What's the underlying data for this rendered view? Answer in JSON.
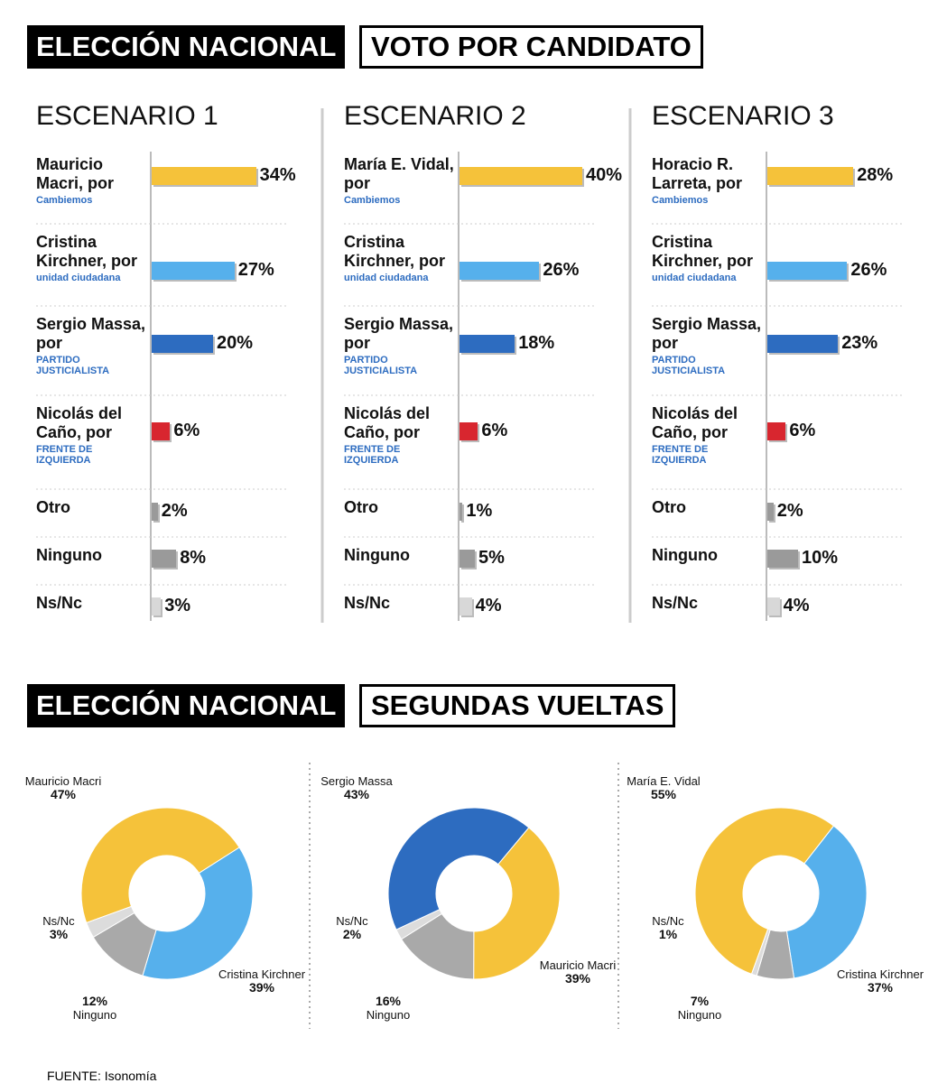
{
  "headers": [
    {
      "left": "ELECCIÓN NACIONAL",
      "right": "VOTO POR CANDIDATO"
    },
    {
      "left": "ELECCIÓN NACIONAL",
      "right": "SEGUNDAS VUELTAS"
    }
  ],
  "source": "FUENTE: Isonomía",
  "chart_data": [
    {
      "type": "bar",
      "title": "ESCENARIO 1",
      "categories": [
        "Mauricio Macri, por",
        "Cristina Kirchner, por",
        "Sergio Massa, por",
        "Nicolás del Caño, por",
        "Otro",
        "Ninguno",
        "Ns/Nc"
      ],
      "parties": [
        "Cambiemos",
        "unidad ciudadana",
        "PARTIDO JUSTICIALISTA",
        "FRENTE DE IZQUIERDA",
        null,
        null,
        null
      ],
      "values": [
        34,
        27,
        20,
        6,
        2,
        8,
        3
      ],
      "value_labels": [
        "34%",
        "27%",
        "20%",
        "6%",
        "2%",
        "8%",
        "3%"
      ],
      "colors": [
        "#f5c23a",
        "#56b0ec",
        "#2d6cc0",
        "#d8262f",
        "#9a9a9a",
        "#9a9a9a",
        "#d8d8d8"
      ]
    },
    {
      "type": "bar",
      "title": "ESCENARIO 2",
      "categories": [
        "María E. Vidal, por",
        "Cristina Kirchner, por",
        "Sergio Massa, por",
        "Nicolás del Caño, por",
        "Otro",
        "Ninguno",
        "Ns/Nc"
      ],
      "parties": [
        "Cambiemos",
        "unidad ciudadana",
        "PARTIDO JUSTICIALISTA",
        "FRENTE DE IZQUIERDA",
        null,
        null,
        null
      ],
      "values": [
        40,
        26,
        18,
        6,
        1,
        5,
        4
      ],
      "value_labels": [
        "40%",
        "26%",
        "18%",
        "6%",
        "1%",
        "5%",
        "4%"
      ],
      "colors": [
        "#f5c23a",
        "#56b0ec",
        "#2d6cc0",
        "#d8262f",
        "#9a9a9a",
        "#9a9a9a",
        "#d8d8d8"
      ]
    },
    {
      "type": "bar",
      "title": "ESCENARIO 3",
      "categories": [
        "Horacio R. Larreta, por",
        "Cristina Kirchner, por",
        "Sergio Massa, por",
        "Nicolás del Caño, por",
        "Otro",
        "Ninguno",
        "Ns/Nc"
      ],
      "parties": [
        "Cambiemos",
        "unidad ciudadana",
        "PARTIDO JUSTICIALISTA",
        "FRENTE DE IZQUIERDA",
        null,
        null,
        null
      ],
      "values": [
        28,
        26,
        23,
        6,
        2,
        10,
        4
      ],
      "value_labels": [
        "28%",
        "26%",
        "23%",
        "6%",
        "2%",
        "10%",
        "4%"
      ],
      "colors": [
        "#f5c23a",
        "#56b0ec",
        "#2d6cc0",
        "#d8262f",
        "#9a9a9a",
        "#9a9a9a",
        "#d8d8d8"
      ]
    },
    {
      "type": "pie",
      "categories": [
        "Mauricio Macri",
        "Cristina Kirchner",
        "Ninguno",
        "Ns/Nc"
      ],
      "values": [
        47,
        39,
        12,
        3
      ],
      "value_labels": [
        "47%",
        "39%",
        "12%",
        "3%"
      ],
      "colors": [
        "#f5c23a",
        "#56b0ec",
        "#a9a9a9",
        "#dcdcdc"
      ]
    },
    {
      "type": "pie",
      "categories": [
        "Sergio Massa",
        "Mauricio Macri",
        "Ninguno",
        "Ns/Nc"
      ],
      "values": [
        43,
        39,
        16,
        2
      ],
      "value_labels": [
        "43%",
        "39%",
        "16%",
        "2%"
      ],
      "colors": [
        "#2d6cc0",
        "#f5c23a",
        "#a9a9a9",
        "#dcdcdc"
      ]
    },
    {
      "type": "pie",
      "categories": [
        "María E. Vidal",
        "Cristina Kirchner",
        "Ninguno",
        "Ns/Nc"
      ],
      "values": [
        55,
        37,
        7,
        1
      ],
      "value_labels": [
        "55%",
        "37%",
        "7%",
        "1%"
      ],
      "colors": [
        "#f5c23a",
        "#56b0ec",
        "#a9a9a9",
        "#dcdcdc"
      ]
    }
  ]
}
